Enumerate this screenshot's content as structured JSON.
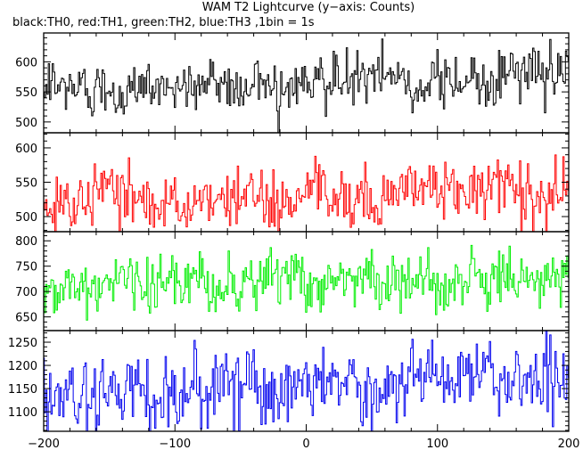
{
  "chart_data": {
    "type": "line",
    "title": "WAM T2 Lightcurve (y−axis: Counts)",
    "subtitle": "black:TH0, red:TH1, green:TH2, blue:TH3 ,1bin = 1s",
    "xlim": [
      -200,
      200
    ],
    "x_ticks": [
      -200,
      -100,
      0,
      100,
      200
    ],
    "x_step": 1,
    "grid": false,
    "panels": [
      {
        "name": "TH0",
        "color": "#000000",
        "ylim": [
          482,
          648
        ],
        "y_ticks": [
          500,
          550,
          600
        ],
        "mean_start": 553,
        "mean_end": 578,
        "noise": 22
      },
      {
        "name": "TH1",
        "color": "#ff0000",
        "ylim": [
          478,
          622
        ],
        "y_ticks": [
          500,
          550,
          600
        ],
        "mean_start": 522,
        "mean_end": 542,
        "noise": 22
      },
      {
        "name": "TH2",
        "color": "#00ee00",
        "ylim": [
          623,
          818
        ],
        "y_ticks": [
          650,
          700,
          750,
          800
        ],
        "mean_start": 712,
        "mean_end": 722,
        "noise": 28
      },
      {
        "name": "TH3",
        "color": "#0000ee",
        "ylim": [
          1058,
          1275
        ],
        "y_ticks": [
          1100,
          1150,
          1200,
          1250
        ],
        "mean_start": 1135,
        "mean_end": 1175,
        "noise": 38
      }
    ]
  }
}
